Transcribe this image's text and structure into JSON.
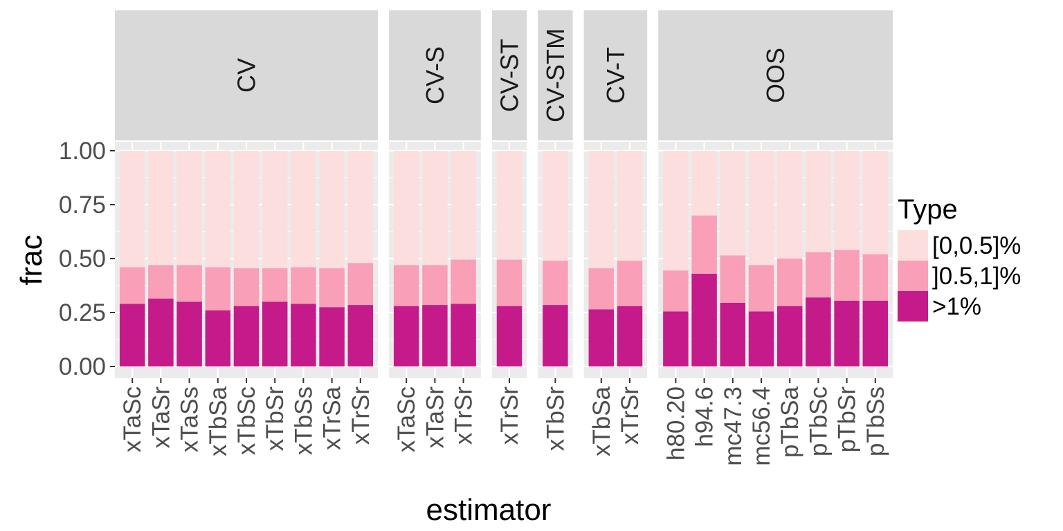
{
  "chart_data": {
    "type": "bar",
    "stacked": true,
    "xlabel": "estimator",
    "ylabel": "frac",
    "ylim": [
      0,
      1
    ],
    "y_ticks": [
      0.0,
      0.25,
      0.5,
      0.75,
      1.0
    ],
    "y_tick_labels": [
      "0.00",
      "0.25",
      "0.50",
      "0.75",
      "1.00"
    ],
    "grid": true,
    "legend": {
      "title": "Type",
      "placement": "right",
      "entries": [
        "[0,0.5]%",
        "]0.5,1]%",
        ">1%"
      ]
    },
    "series_colors": {
      "[0,0.5]%": "#fcdede",
      "]0.5,1]%": "#f99fb8",
      ">1%": "#c51b8a"
    },
    "stack_order_bottom_to_top": [
      ">1%",
      "]0.5,1]%",
      "[0,0.5]%"
    ],
    "facets": [
      {
        "label": "CV",
        "categories": [
          "xTaSc",
          "xTaSr",
          "xTaSs",
          "xTbSa",
          "xTbSc",
          "xTbSr",
          "xTbSs",
          "xTrSa",
          "xTrSr"
        ],
        "gt1": [
          0.29,
          0.315,
          0.3,
          0.26,
          0.28,
          0.3,
          0.29,
          0.275,
          0.285
        ],
        "cum_le1": [
          0.46,
          0.47,
          0.47,
          0.46,
          0.455,
          0.455,
          0.46,
          0.455,
          0.48
        ]
      },
      {
        "label": "CV-S",
        "categories": [
          "xTaSc",
          "xTaSr",
          "xTrSr"
        ],
        "gt1": [
          0.28,
          0.285,
          0.29
        ],
        "cum_le1": [
          0.47,
          0.47,
          0.495
        ]
      },
      {
        "label": "CV-ST",
        "categories": [
          "xTrSr"
        ],
        "gt1": [
          0.28
        ],
        "cum_le1": [
          0.495
        ]
      },
      {
        "label": "CV-STM",
        "categories": [
          "xTbSr"
        ],
        "gt1": [
          0.285
        ],
        "cum_le1": [
          0.49
        ]
      },
      {
        "label": "CV-T",
        "categories": [
          "xTbSa",
          "xTrSr"
        ],
        "gt1": [
          0.265,
          0.28
        ],
        "cum_le1": [
          0.455,
          0.49
        ]
      },
      {
        "label": "OOS",
        "categories": [
          "h80.20",
          "h94.6",
          "mc47.3",
          "mc56.4",
          "pTbSa",
          "pTbSc",
          "pTbSr",
          "pTbSs"
        ],
        "gt1": [
          0.255,
          0.43,
          0.295,
          0.255,
          0.28,
          0.32,
          0.305,
          0.305
        ],
        "cum_le1": [
          0.445,
          0.7,
          0.515,
          0.47,
          0.5,
          0.53,
          0.54,
          0.52
        ]
      }
    ]
  }
}
